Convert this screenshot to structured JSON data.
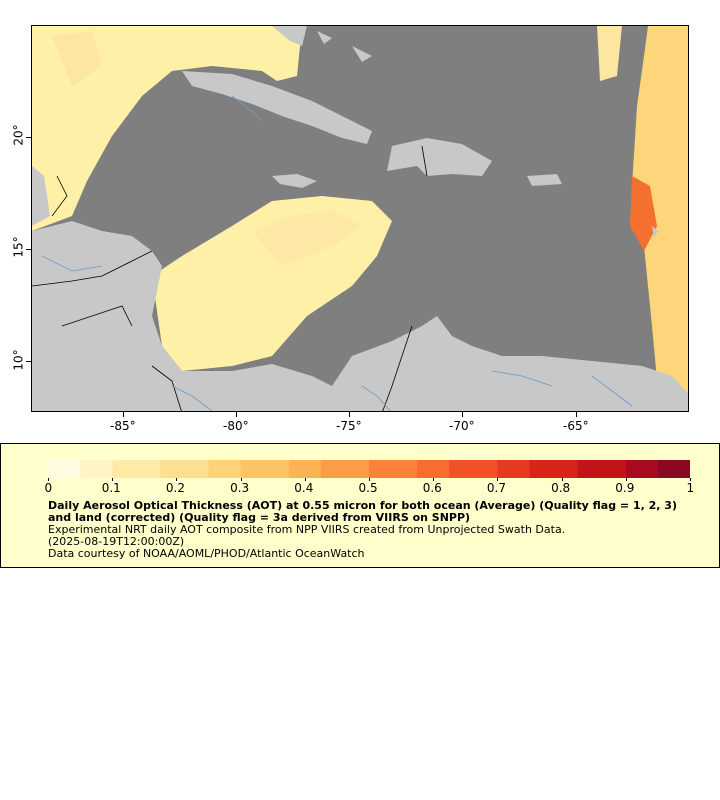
{
  "map": {
    "lat_labels": [
      "20°",
      "15°",
      "10°"
    ],
    "lon_labels": [
      "-85°",
      "-80°",
      "-75°",
      "-70°",
      "-65°"
    ],
    "colors": {
      "ocean": "#7f7f7f",
      "land": "#c8c8c8",
      "river": "#6b9ac9",
      "border": "#000000",
      "light_aot": "#fff0a8",
      "mid_aot": "#fdd57a",
      "high_aot": "#f4702e"
    }
  },
  "colorbar": {
    "ticks": [
      "0",
      "0.1",
      "0.2",
      "0.3",
      "0.4",
      "0.5",
      "0.6",
      "0.7",
      "0.8",
      "0.9",
      "1"
    ],
    "colors": [
      "#fffbe0",
      "#fff4c4",
      "#ffeaa8",
      "#fedf8f",
      "#fed37a",
      "#fdc467",
      "#fdb256",
      "#fc9b48",
      "#fc823c",
      "#f86b31",
      "#f05127",
      "#e53a1f",
      "#d62418",
      "#c31419",
      "#a80b1f",
      "#8a0822"
    ]
  },
  "legend": {
    "title": "Daily Aerosol Optical Thickness (AOT) at 0.55 micron for both ocean (Average) (Quality flag = 1, 2, 3) and land (corrected) (Quality flag = 3a derived from VIIRS on SNPP)",
    "line1": "Experimental NRT daily AOT composite from NPP VIIRS created from Unprojected Swath Data.",
    "line2": "(2025-08-19T12:00:00Z)",
    "line3": "Data courtesy of NOAA/AOML/PHOD/Atlantic OceanWatch"
  }
}
